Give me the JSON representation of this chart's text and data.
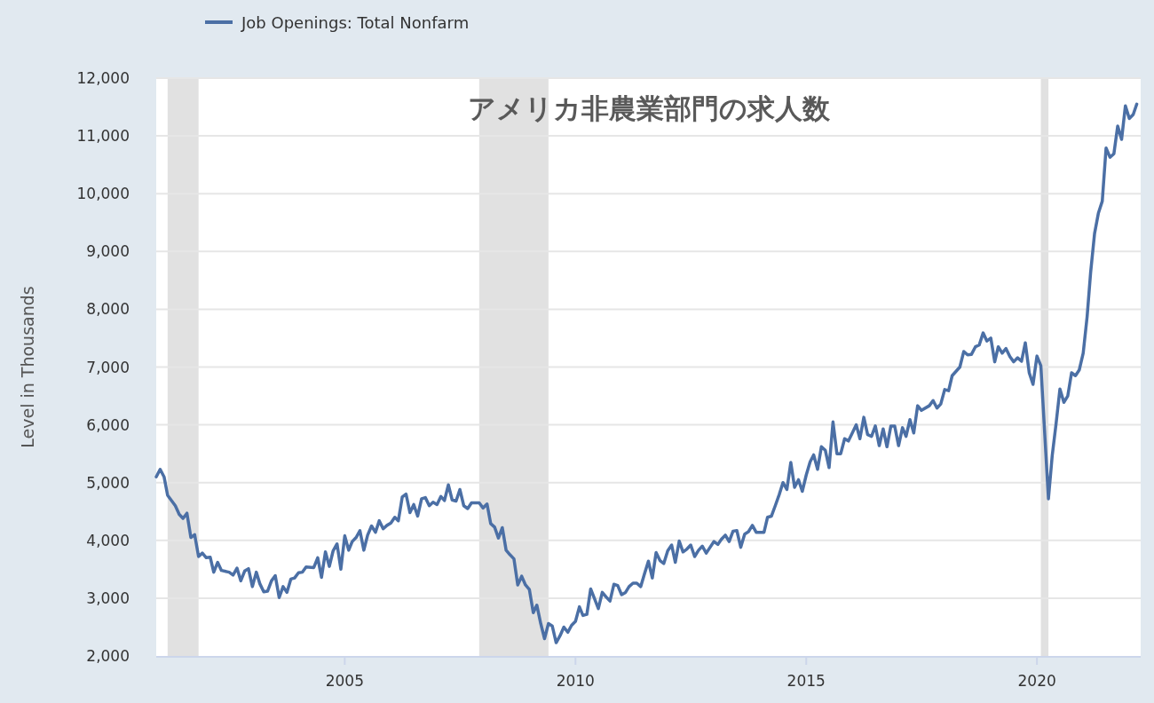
{
  "chart_data": {
    "type": "line",
    "title": "アメリカ非農業部門の求人数",
    "ylabel": "Level in Thousands",
    "legend": "top left",
    "grid": "y",
    "line_style": "solid",
    "marker": "none",
    "xlim": [
      "2000-12",
      "2022-04"
    ],
    "xticks": [
      "2005",
      "2010",
      "2015",
      "2020"
    ],
    "ylim": [
      2000,
      12000
    ],
    "yticks": [
      {
        "value": 2000,
        "label": "2,000"
      },
      {
        "value": 3000,
        "label": "3,000"
      },
      {
        "value": 4000,
        "label": "4,000"
      },
      {
        "value": 5000,
        "label": "5,000"
      },
      {
        "value": 6000,
        "label": "6,000"
      },
      {
        "value": 7000,
        "label": "7,000"
      },
      {
        "value": 8000,
        "label": "8,000"
      },
      {
        "value": 9000,
        "label": "9,000"
      },
      {
        "value": 10000,
        "label": "10,000"
      },
      {
        "value": 11000,
        "label": "11,000"
      },
      {
        "value": 12000,
        "label": "12,000"
      }
    ],
    "bands": [
      {
        "axis": "x",
        "from": "2001-03",
        "to": "2001-11",
        "color": "#e1e1e1"
      },
      {
        "axis": "x",
        "from": "2007-12",
        "to": "2009-06",
        "color": "#e1e1e1"
      },
      {
        "axis": "x",
        "from": "2020-02",
        "to": "2020-04",
        "color": "#e1e1e1"
      }
    ],
    "series": [
      {
        "name": "Job Openings: Total Nonfarm",
        "color": "#4b6fa5",
        "x": [
          "2000-12",
          "2001-01",
          "2001-02",
          "2001-03",
          "2001-05",
          "2001-06",
          "2001-07",
          "2001-08",
          "2001-09",
          "2001-10",
          "2001-11",
          "2001-12",
          "2002-01",
          "2002-02",
          "2002-03",
          "2002-04",
          "2002-05",
          "2002-07",
          "2002-08",
          "2002-09",
          "2002-10",
          "2002-11",
          "2002-12",
          "2003-01",
          "2003-02",
          "2003-03",
          "2003-04",
          "2003-05",
          "2003-06",
          "2003-07",
          "2003-08",
          "2003-09",
          "2003-10",
          "2003-11",
          "2003-12",
          "2004-01",
          "2004-02",
          "2004-03",
          "2004-05",
          "2004-06",
          "2004-07",
          "2004-08",
          "2004-09",
          "2004-10",
          "2004-11",
          "2004-12",
          "2005-01",
          "2005-02",
          "2005-03",
          "2005-04",
          "2005-05",
          "2005-06",
          "2005-07",
          "2005-08",
          "2005-09",
          "2005-10",
          "2005-11",
          "2005-12",
          "2006-01",
          "2006-02",
          "2006-03",
          "2006-04",
          "2006-05",
          "2006-06",
          "2006-07",
          "2006-08",
          "2006-09",
          "2006-10",
          "2006-11",
          "2006-12",
          "2007-01",
          "2007-02",
          "2007-03",
          "2007-04",
          "2007-05",
          "2007-06",
          "2007-07",
          "2007-08",
          "2007-09",
          "2007-10",
          "2007-12",
          "2008-01",
          "2008-02",
          "2008-03",
          "2008-04",
          "2008-05",
          "2008-06",
          "2008-07",
          "2008-08",
          "2008-09",
          "2008-10",
          "2008-11",
          "2008-12",
          "2009-01",
          "2009-02",
          "2009-03",
          "2009-04",
          "2009-05",
          "2009-06",
          "2009-07",
          "2009-08",
          "2009-09",
          "2009-10",
          "2009-11",
          "2009-12",
          "2010-01",
          "2010-02",
          "2010-03",
          "2010-04",
          "2010-05",
          "2010-06",
          "2010-07",
          "2010-08",
          "2010-09",
          "2010-10",
          "2010-11",
          "2010-12",
          "2011-01",
          "2011-02",
          "2011-03",
          "2011-04",
          "2011-05",
          "2011-06",
          "2011-07",
          "2011-08",
          "2011-09",
          "2011-10",
          "2011-11",
          "2011-12",
          "2012-01",
          "2012-02",
          "2012-03",
          "2012-04",
          "2012-05",
          "2012-06",
          "2012-07",
          "2012-08",
          "2012-09",
          "2012-10",
          "2012-11",
          "2012-12",
          "2013-01",
          "2013-02",
          "2013-03",
          "2013-04",
          "2013-05",
          "2013-06",
          "2013-07",
          "2013-08",
          "2013-09",
          "2013-10",
          "2013-11",
          "2013-12",
          "2014-01",
          "2014-02",
          "2014-03",
          "2014-04",
          "2014-05",
          "2014-06",
          "2014-07",
          "2014-08",
          "2014-09",
          "2014-10",
          "2014-11",
          "2014-12",
          "2015-01",
          "2015-02",
          "2015-03",
          "2015-04",
          "2015-05",
          "2015-06",
          "2015-07",
          "2015-08",
          "2015-09",
          "2015-10",
          "2015-11",
          "2015-12",
          "2016-01",
          "2016-02",
          "2016-03",
          "2016-04",
          "2016-05",
          "2016-06",
          "2016-07",
          "2016-08",
          "2016-09",
          "2016-10",
          "2016-11",
          "2016-12",
          "2017-01",
          "2017-02",
          "2017-03",
          "2017-04",
          "2017-05",
          "2017-06",
          "2017-07",
          "2017-09",
          "2017-10",
          "2017-11",
          "2017-12",
          "2018-01",
          "2018-02",
          "2018-03",
          "2018-05",
          "2018-06",
          "2018-07",
          "2018-08",
          "2018-09",
          "2018-10",
          "2018-11",
          "2018-12",
          "2019-01",
          "2019-02",
          "2019-03",
          "2019-04",
          "2019-05",
          "2019-06",
          "2019-07",
          "2019-08",
          "2019-09",
          "2019-10",
          "2019-11",
          "2019-12",
          "2020-01",
          "2020-02",
          "2020-04",
          "2020-05",
          "2020-06",
          "2020-07",
          "2020-08",
          "2020-09",
          "2020-10",
          "2020-11",
          "2020-12",
          "2021-01",
          "2021-02",
          "2021-03",
          "2021-04",
          "2021-05",
          "2021-06",
          "2021-07",
          "2021-08",
          "2021-09",
          "2021-10",
          "2021-11",
          "2021-12",
          "2022-01",
          "2022-02",
          "2022-03"
        ],
        "values": [
          5100,
          5230,
          5100,
          4780,
          4600,
          4450,
          4380,
          4470,
          4050,
          4100,
          3720,
          3780,
          3700,
          3710,
          3450,
          3620,
          3480,
          3450,
          3400,
          3520,
          3300,
          3470,
          3510,
          3200,
          3450,
          3250,
          3110,
          3120,
          3300,
          3390,
          3010,
          3200,
          3100,
          3330,
          3350,
          3440,
          3450,
          3540,
          3530,
          3700,
          3360,
          3800,
          3550,
          3820,
          3940,
          3500,
          4080,
          3830,
          3980,
          4050,
          4170,
          3830,
          4090,
          4250,
          4140,
          4340,
          4200,
          4260,
          4300,
          4400,
          4340,
          4750,
          4800,
          4480,
          4620,
          4420,
          4720,
          4740,
          4600,
          4660,
          4620,
          4760,
          4690,
          4960,
          4700,
          4680,
          4880,
          4600,
          4550,
          4650,
          4650,
          4560,
          4630,
          4290,
          4230,
          4040,
          4220,
          3830,
          3750,
          3680,
          3230,
          3380,
          3230,
          3150,
          2750,
          2880,
          2560,
          2300,
          2560,
          2520,
          2230,
          2350,
          2500,
          2410,
          2530,
          2600,
          2850,
          2700,
          2720,
          3160,
          2990,
          2820,
          3100,
          3020,
          2950,
          3240,
          3220,
          3060,
          3100,
          3200,
          3260,
          3260,
          3200,
          3420,
          3640,
          3350,
          3790,
          3650,
          3600,
          3820,
          3920,
          3620,
          3990,
          3800,
          3850,
          3920,
          3720,
          3830,
          3900,
          3780,
          3880,
          3980,
          3930,
          4020,
          4090,
          3980,
          4160,
          4170,
          3880,
          4110,
          4150,
          4260,
          4140,
          4140,
          4140,
          4400,
          4420,
          4600,
          4790,
          5000,
          4880,
          5350,
          4920,
          5050,
          4850,
          5130,
          5360,
          5480,
          5230,
          5620,
          5560,
          5260,
          6050,
          5500,
          5500,
          5760,
          5720,
          5860,
          6000,
          5760,
          6130,
          5830,
          5800,
          5980,
          5640,
          5930,
          5620,
          5980,
          5980,
          5640,
          5950,
          5800,
          6090,
          5860,
          6330,
          6250,
          6330,
          6420,
          6290,
          6360,
          6610,
          6590,
          6850,
          7000,
          7270,
          7210,
          7220,
          7350,
          7380,
          7590,
          7450,
          7500,
          7090,
          7350,
          7240,
          7320,
          7180,
          7090,
          7160,
          7100,
          7420,
          6900,
          6700,
          7190,
          7020,
          4720,
          5470,
          6030,
          6620,
          6390,
          6500,
          6900,
          6850,
          6950,
          7240,
          7870,
          8640,
          9310,
          9660,
          9870,
          10790,
          10630,
          10690,
          11170,
          10940,
          11520,
          11300,
          11370,
          11550
        ]
      }
    ]
  }
}
